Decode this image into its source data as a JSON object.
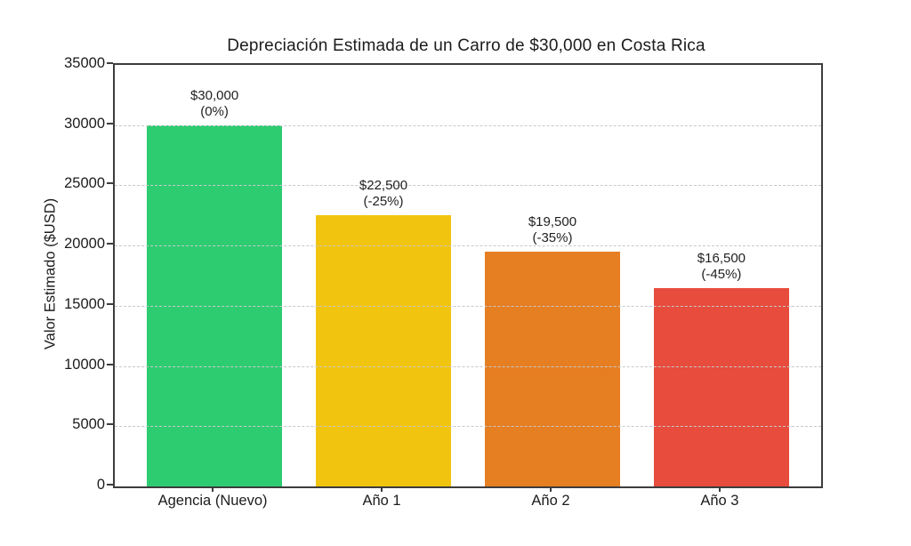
{
  "chart_data": {
    "type": "bar",
    "title": "Depreciación Estimada de un Carro de $30,000 en Costa Rica",
    "xlabel": "",
    "ylabel": "Valor Estimado ($USD)",
    "categories": [
      "Agencia (Nuevo)",
      "Año 1",
      "Año 2",
      "Año 3"
    ],
    "values": [
      30000,
      22500,
      19500,
      16500
    ],
    "bar_labels": [
      [
        "$30,000",
        "(0%)"
      ],
      [
        "$22,500",
        "(-25%)"
      ],
      [
        "$19,500",
        "(-35%)"
      ],
      [
        "$16,500",
        "(-45%)"
      ]
    ],
    "colors": [
      "#2ecc71",
      "#f1c40f",
      "#e67e22",
      "#e74c3c"
    ],
    "ylim": [
      0,
      35000
    ],
    "yticks": [
      0,
      5000,
      10000,
      15000,
      20000,
      25000,
      30000,
      35000
    ],
    "grid": "horizontal-dashed",
    "legend": "none",
    "background_color": "#ffffff"
  }
}
